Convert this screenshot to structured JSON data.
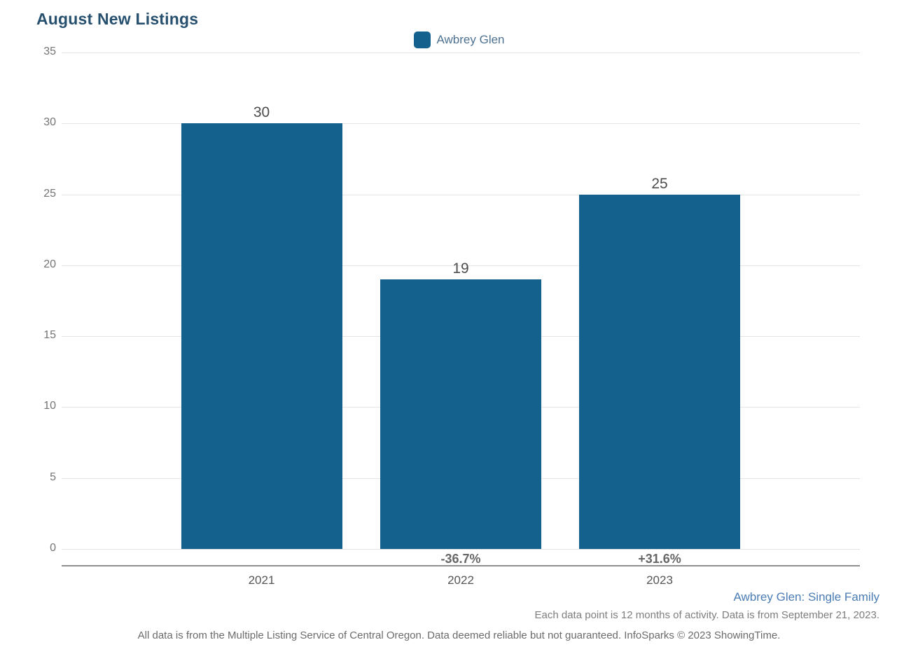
{
  "page": {
    "title": "August New Listings"
  },
  "legend": {
    "label": "Awbrey Glen",
    "swatch_color": "#15618d"
  },
  "footer": {
    "series_note": "Awbrey Glen: Single Family",
    "data_note": "Each data point is 12 months of activity. Data is from September 21, 2023.",
    "disclaimer": "All data is from the Multiple Listing Service of Central Oregon. Data deemed reliable but not guaranteed. InfoSparks © 2023 ShowingTime."
  },
  "chart_data": {
    "type": "bar",
    "title": "August New Listings",
    "categories": [
      "2021",
      "2022",
      "2023"
    ],
    "series": [
      {
        "name": "Awbrey Glen",
        "values": [
          30,
          19,
          25
        ]
      }
    ],
    "value_labels": [
      "30",
      "19",
      "25"
    ],
    "pct_change_labels": [
      "",
      "-36.7%",
      "+31.6%"
    ],
    "xlabel": "",
    "ylabel": "",
    "ylim": [
      0,
      35
    ],
    "yticks": [
      0,
      5,
      10,
      15,
      20,
      25,
      30,
      35
    ],
    "grid": true,
    "legend_position": "top-center",
    "bar_color": "#15618d",
    "gridline_color": "#e4e4e4",
    "axis_line_color": "#8f8f8f"
  }
}
